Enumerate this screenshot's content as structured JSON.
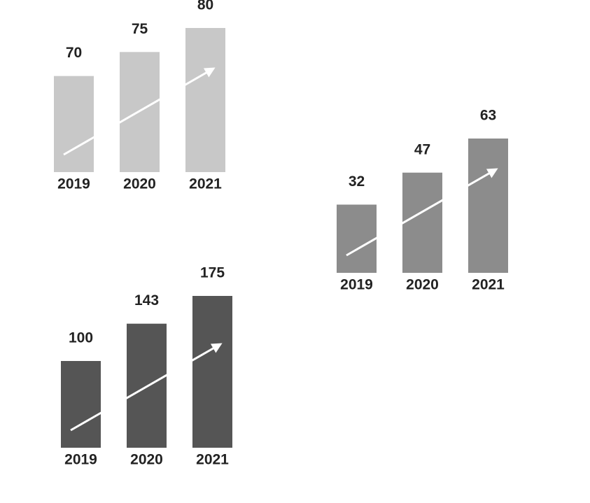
{
  "chart_data": [
    {
      "type": "bar",
      "categories": [
        "2019",
        "2020",
        "2021"
      ],
      "values": [
        70,
        75,
        80
      ],
      "color": "#c8c8c8",
      "ylim": [
        50,
        80
      ]
    },
    {
      "type": "bar",
      "categories": [
        "2019",
        "2020",
        "2021"
      ],
      "values": [
        32,
        47,
        63
      ],
      "color": "#8c8c8c",
      "ylim": [
        0,
        63
      ]
    },
    {
      "type": "bar",
      "categories": [
        "2019",
        "2020",
        "2021"
      ],
      "values": [
        100,
        143,
        175
      ],
      "color": "#555555",
      "ylim": [
        0,
        175
      ]
    }
  ]
}
